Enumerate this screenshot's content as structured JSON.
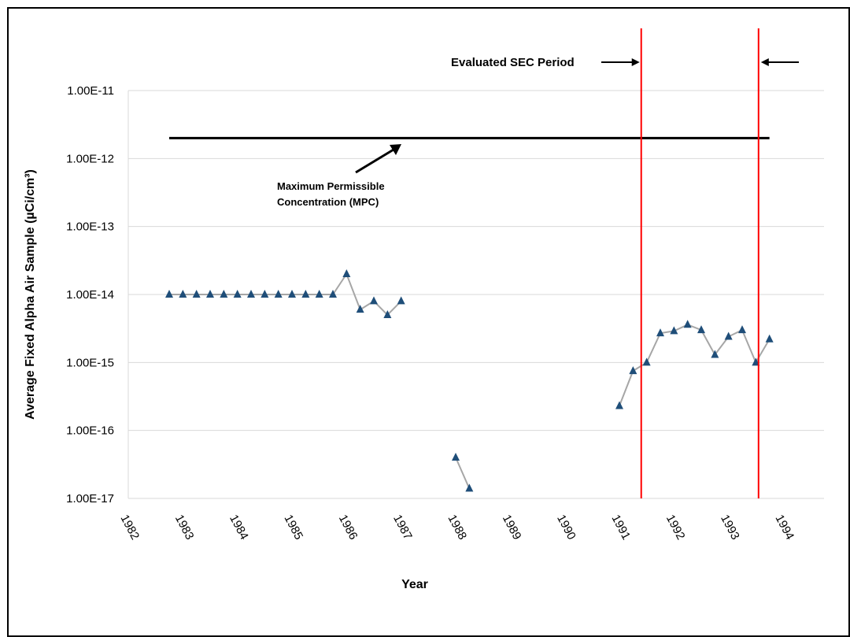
{
  "chart_data": {
    "type": "line",
    "title": "",
    "xlabel": "Year",
    "ylabel": "Average Fixed Alpha Air Sample (µCi/cm³)",
    "y_scale": "log",
    "ylim": [
      1e-17,
      1e-11
    ],
    "xlim": [
      1982,
      1994.75
    ],
    "x_ticks": [
      "1982",
      "1983",
      "1984",
      "1985",
      "1986",
      "1987",
      "1988",
      "1989",
      "1990",
      "1991",
      "1992",
      "1993",
      "1994"
    ],
    "y_ticks": [
      "1.00E-11",
      "1.00E-12",
      "1.00E-13",
      "1.00E-14",
      "1.00E-15",
      "1.00E-16",
      "1.00E-17"
    ],
    "grid": "horizontal",
    "colors": {
      "series": "#1f4e79",
      "line": "#a6a6a6",
      "mpc": "#000000",
      "sec": "#ff0000",
      "grid": "#d9d9d9"
    },
    "series": [
      {
        "segments": [
          [
            [
              1982.75,
              1e-14
            ],
            [
              1983.0,
              1e-14
            ],
            [
              1983.25,
              1e-14
            ],
            [
              1983.5,
              1e-14
            ],
            [
              1983.75,
              1e-14
            ],
            [
              1984.0,
              1e-14
            ],
            [
              1984.25,
              1e-14
            ],
            [
              1984.5,
              1e-14
            ],
            [
              1984.75,
              1e-14
            ],
            [
              1985.0,
              1e-14
            ],
            [
              1985.25,
              1e-14
            ],
            [
              1985.5,
              1e-14
            ],
            [
              1985.75,
              1e-14
            ],
            [
              1986.0,
              2e-14
            ],
            [
              1986.25,
              6e-15
            ],
            [
              1986.5,
              8e-15
            ],
            [
              1986.75,
              5e-15
            ],
            [
              1987.0,
              8e-15
            ]
          ],
          [
            [
              1988.0,
              4e-17
            ],
            [
              1988.25,
              1.4e-17
            ]
          ],
          [
            [
              1991.0,
              2.3e-16
            ],
            [
              1991.25,
              7.5e-16
            ],
            [
              1991.5,
              1e-15
            ],
            [
              1991.75,
              2.7e-15
            ],
            [
              1992.0,
              2.9e-15
            ],
            [
              1992.25,
              3.6e-15
            ],
            [
              1992.5,
              3e-15
            ],
            [
              1992.75,
              1.3e-15
            ],
            [
              1993.0,
              2.4e-15
            ],
            [
              1993.25,
              3e-15
            ],
            [
              1993.5,
              1e-15
            ],
            [
              1993.75,
              2.2e-15
            ]
          ]
        ]
      }
    ],
    "mpc": {
      "value": 2e-12,
      "x_start": 1982.75,
      "x_end": 1993.75
    },
    "sec_period": {
      "start": 1991.4,
      "end": 1993.55
    },
    "annotations": {
      "mpc_label_line1": "Maximum Permissible",
      "mpc_label_line2": "Concentration (MPC)",
      "sec_label": "Evaluated SEC Period"
    }
  }
}
